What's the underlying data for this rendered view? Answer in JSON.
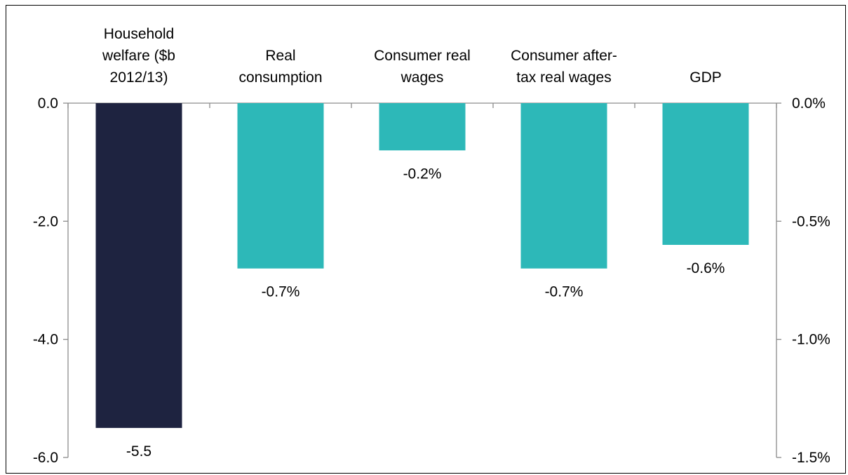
{
  "chart_data": {
    "type": "bar",
    "categories": [
      [
        "Household",
        "welfare ($b",
        "2012/13)"
      ],
      [
        "Real",
        "consumption"
      ],
      [
        "Consumer real",
        "wages"
      ],
      [
        "Consumer after-",
        "tax real wages"
      ],
      [
        "GDP"
      ]
    ],
    "values": [
      -5.5,
      -0.7,
      -0.2,
      -0.7,
      -0.6
    ],
    "value_axis": [
      "left",
      "right",
      "right",
      "right",
      "right"
    ],
    "data_labels": [
      "-5.5",
      "-0.7%",
      "-0.2%",
      "-0.7%",
      "-0.6%"
    ],
    "colors": [
      "#1e2340",
      "#2db8b8",
      "#2db8b8",
      "#2db8b8",
      "#2db8b8"
    ],
    "left_axis": {
      "ylim": [
        -6.0,
        0.0
      ],
      "ticks": [
        "0.0",
        "-2.0",
        "-4.0",
        "-6.0"
      ],
      "tick_values": [
        0,
        -2,
        -4,
        -6
      ]
    },
    "right_axis": {
      "ylim": [
        -1.5,
        0.0
      ],
      "ticks": [
        "0.0%",
        "-0.5%",
        "-1.0%",
        "-1.5%"
      ],
      "tick_values": [
        0,
        -0.5,
        -1.0,
        -1.5
      ],
      "unit": "%"
    },
    "grid": false,
    "legend": "none"
  }
}
